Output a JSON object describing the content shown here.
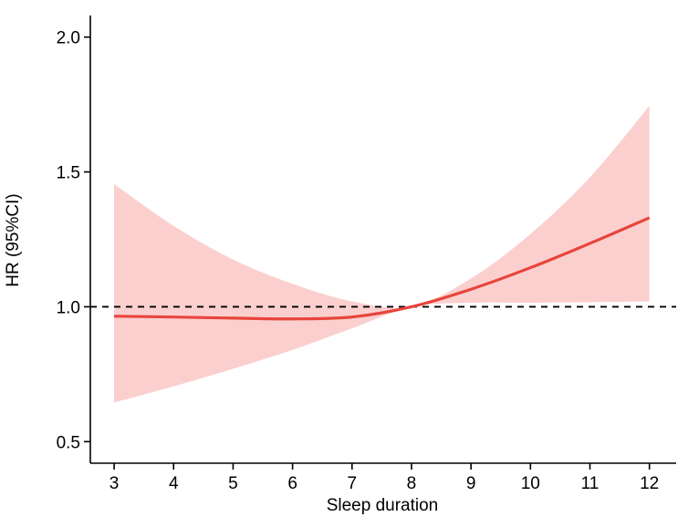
{
  "chart_data": {
    "type": "line",
    "title": "",
    "xlabel": "Sleep duration",
    "ylabel": "HR (95%CI)",
    "xlim": [
      2.6,
      12.45
    ],
    "ylim": [
      0.42,
      2.08
    ],
    "xticks": [
      3,
      4,
      5,
      6,
      7,
      8,
      9,
      10,
      11,
      12
    ],
    "yticks": [
      0.5,
      1.0,
      1.5,
      2.0
    ],
    "ytick_labels": [
      "0.5",
      "1.0",
      "1.5",
      "2.0"
    ],
    "reference_line": {
      "y": 1.0,
      "style": "dashed",
      "color": "#000000"
    },
    "grid": false,
    "legend": "none",
    "series": [
      {
        "x": [
          3,
          4,
          5,
          6,
          7,
          8,
          9,
          10,
          11,
          12
        ],
        "y": [
          0.965,
          0.962,
          0.958,
          0.955,
          0.962,
          1.0,
          1.065,
          1.145,
          1.235,
          1.33
        ],
        "lower": [
          0.645,
          0.705,
          0.77,
          0.84,
          0.92,
          1.0,
          1.015,
          1.015,
          1.017,
          1.02
        ],
        "upper": [
          1.455,
          1.3,
          1.175,
          1.085,
          1.02,
          1.0,
          1.105,
          1.27,
          1.48,
          1.745
        ],
        "line_color": "#e8453c",
        "band_color": "#fccfcf"
      }
    ]
  }
}
